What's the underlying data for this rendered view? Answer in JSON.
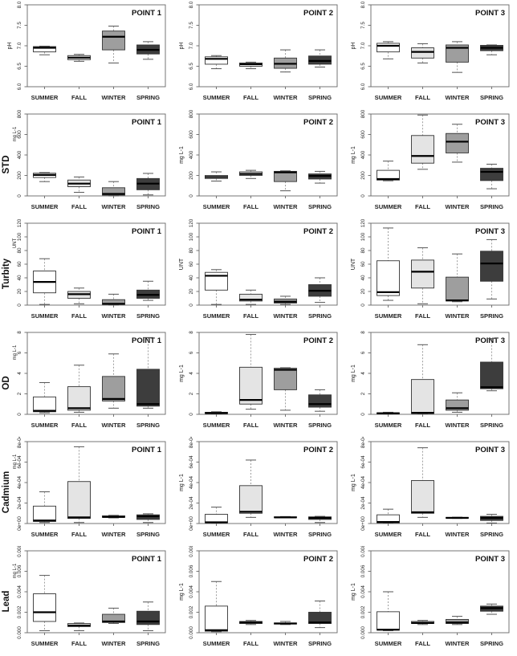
{
  "figure": {
    "background": "#ffffff",
    "seasons": [
      "SUMMER",
      "FALL",
      "WINTER",
      "SPRING"
    ],
    "season_colors": [
      "#ffffff",
      "#e4e4e4",
      "#9e9e9e",
      "#3d3d3d"
    ],
    "box_stroke": "#333333",
    "median_color": "#000000",
    "whisker_color": "#888888",
    "frame_color": "#666666",
    "text_color": "#222222"
  },
  "chart_data": [
    {
      "type": "boxplot",
      "parameter": "pH",
      "big_label": null,
      "unit": "pH",
      "ylim": [
        6.0,
        8.0
      ],
      "ytick_values": [
        6.0,
        6.5,
        7.0,
        7.5,
        8.0
      ],
      "ytick_labels": [
        "6.0",
        "6.5",
        "7.0",
        "7.5",
        "8.0"
      ],
      "categories": [
        "SUMMER",
        "FALL",
        "WINTER",
        "SPRING"
      ],
      "panels": [
        {
          "title": "POINT 1",
          "boxes": [
            [
              6.78,
              6.85,
              6.95,
              6.98,
              6.99
            ],
            [
              6.62,
              6.66,
              6.71,
              6.76,
              6.79
            ],
            [
              6.58,
              6.9,
              7.22,
              7.36,
              7.48
            ],
            [
              6.67,
              6.8,
              6.9,
              7.02,
              7.1
            ]
          ]
        },
        {
          "title": "POINT 2",
          "boxes": [
            [
              6.44,
              6.55,
              6.68,
              6.73,
              6.76
            ],
            [
              6.44,
              6.5,
              6.55,
              6.58,
              6.6
            ],
            [
              6.36,
              6.45,
              6.56,
              6.7,
              6.9
            ],
            [
              6.48,
              6.55,
              6.63,
              6.75,
              6.9
            ]
          ]
        },
        {
          "title": "POINT 3",
          "boxes": [
            [
              6.68,
              6.85,
              7.0,
              7.06,
              7.1
            ],
            [
              6.58,
              6.7,
              6.85,
              6.95,
              7.05
            ],
            [
              6.35,
              6.6,
              6.95,
              7.02,
              7.1
            ],
            [
              6.78,
              6.88,
              6.95,
              7.01,
              7.02
            ]
          ]
        }
      ]
    },
    {
      "type": "boxplot",
      "parameter": "STD",
      "big_label": "STD",
      "unit": "mg L-1",
      "ylim": [
        0,
        800
      ],
      "ytick_values": [
        0,
        200,
        400,
        600,
        800
      ],
      "ytick_labels": [
        "0",
        "200",
        "400",
        "600",
        "800"
      ],
      "categories": [
        "SUMMER",
        "FALL",
        "WINTER",
        "SPRING"
      ],
      "panels": [
        {
          "title": "POINT 1",
          "boxes": [
            [
              140,
              180,
              205,
              222,
              228
            ],
            [
              35,
              90,
              120,
              155,
              185
            ],
            [
              0,
              8,
              20,
              80,
              140
            ],
            [
              10,
              60,
              120,
              170,
              220
            ]
          ]
        },
        {
          "title": "POINT 2",
          "boxes": [
            [
              145,
              170,
              185,
              200,
              235
            ],
            [
              170,
              200,
              215,
              235,
              250
            ],
            [
              50,
              140,
              230,
              240,
              245
            ],
            [
              125,
              165,
              195,
              215,
              240
            ]
          ]
        },
        {
          "title": "POINT 3",
          "boxes": [
            [
              148,
              155,
              165,
              250,
              340
            ],
            [
              260,
              320,
              390,
              590,
              790
            ],
            [
              330,
              420,
              530,
              610,
              700
            ],
            [
              70,
              150,
              235,
              270,
              310
            ]
          ]
        }
      ]
    },
    {
      "type": "boxplot",
      "parameter": "Turbity",
      "big_label": "Turbity",
      "unit": "UNT",
      "ylim": [
        0,
        120
      ],
      "ytick_values": [
        0,
        20,
        40,
        60,
        80,
        100,
        120
      ],
      "ytick_labels": [
        "0",
        "20",
        "40",
        "60",
        "80",
        "100",
        "120"
      ],
      "categories": [
        "SUMMER",
        "FALL",
        "WINTER",
        "SPRING"
      ],
      "panels": [
        {
          "title": "POINT 1",
          "boxes": [
            [
              1,
              18,
              34,
              50,
              68
            ],
            [
              2,
              10,
              16,
              20,
              25
            ],
            [
              0,
              1,
              2,
              8,
              16
            ],
            [
              7,
              10,
              15,
              22,
              35
            ]
          ]
        },
        {
          "title": "POINT 2",
          "boxes": [
            [
              1,
              22,
              43,
              48,
              52
            ],
            [
              1,
              6,
              8,
              16,
              22
            ],
            [
              1,
              3,
              5,
              9,
              13
            ],
            [
              4,
              13,
              21,
              30,
              40
            ]
          ]
        },
        {
          "title": "POINT 3",
          "boxes": [
            [
              7,
              14,
              19,
              65,
              113
            ],
            [
              2,
              25,
              49,
              66,
              84
            ],
            [
              5,
              6,
              7,
              41,
              75
            ],
            [
              9,
              35,
              61,
              79,
              96
            ]
          ]
        }
      ]
    },
    {
      "type": "boxplot",
      "parameter": "OD",
      "big_label": "OD",
      "unit": "mg L-1",
      "ylim": [
        0,
        8
      ],
      "ytick_values": [
        0,
        2,
        4,
        6,
        8
      ],
      "ytick_labels": [
        "0",
        "2",
        "4",
        "6",
        "8"
      ],
      "categories": [
        "SUMMER",
        "FALL",
        "WINTER",
        "SPRING"
      ],
      "panels": [
        {
          "title": "POINT 1",
          "boxes": [
            [
              0.15,
              0.25,
              0.35,
              1.7,
              3.1
            ],
            [
              0.2,
              0.4,
              0.6,
              2.7,
              4.8
            ],
            [
              0.6,
              1.3,
              1.5,
              3.7,
              5.9
            ],
            [
              0.6,
              0.8,
              1.0,
              4.4,
              7.5
            ]
          ]
        },
        {
          "title": "POINT 2",
          "boxes": [
            [
              0.05,
              0.08,
              0.12,
              0.2,
              0.25
            ],
            [
              0.5,
              1.0,
              1.4,
              4.6,
              7.8
            ],
            [
              0.4,
              2.4,
              4.35,
              4.5,
              4.55
            ],
            [
              0.3,
              0.7,
              1.0,
              1.9,
              2.4
            ]
          ]
        },
        {
          "title": "POINT 3",
          "boxes": [
            [
              0.03,
              0.06,
              0.1,
              0.15,
              0.2
            ],
            [
              0.05,
              0.08,
              0.15,
              3.4,
              6.8
            ],
            [
              0.2,
              0.4,
              0.6,
              1.4,
              2.1
            ],
            [
              2.3,
              2.5,
              2.65,
              5.1,
              7.4
            ]
          ]
        }
      ]
    },
    {
      "type": "boxplot",
      "parameter": "Cadmium",
      "big_label": "Cadmium",
      "unit": "mg L-1",
      "ylim": [
        0,
        0.0008
      ],
      "ytick_values": [
        0,
        0.0002,
        0.0004,
        0.0006,
        0.0008
      ],
      "ytick_labels": [
        "0e+00",
        "2e-04",
        "4e-04",
        "6e-04",
        "8e-04"
      ],
      "categories": [
        "SUMMER",
        "FALL",
        "WINTER",
        "SPRING"
      ],
      "panels": [
        {
          "title": "POINT 1",
          "boxes": [
            [
              1e-05,
              2e-05,
              3e-05,
              0.00017,
              0.00031
            ],
            [
              1e-05,
              5e-05,
              6e-05,
              0.00041,
              0.00075
            ],
            [
              5.5e-05,
              6e-05,
              6.5e-05,
              7.5e-05,
              8e-05
            ],
            [
              1e-05,
              4e-05,
              7e-05,
              8.5e-05,
              9.5e-05
            ]
          ]
        },
        {
          "title": "POINT 2",
          "boxes": [
            [
              5e-06,
              8e-06,
              1.2e-05,
              9e-05,
              0.00016
            ],
            [
              6e-05,
              0.0001,
              0.000115,
              0.00037,
              0.00062
            ],
            [
              5.5e-05,
              5.8e-05,
              6e-05,
              6.5e-05,
              6.8e-05
            ],
            [
              1e-05,
              4e-05,
              5.5e-05,
              6.5e-05,
              7e-05
            ]
          ]
        },
        {
          "title": "POINT 3",
          "boxes": [
            [
              5e-06,
              8e-06,
              1.5e-05,
              8.5e-05,
              0.00014
            ],
            [
              6e-05,
              0.0001,
              0.00011,
              0.00042,
              0.00074
            ],
            [
              5e-05,
              5.2e-05,
              5.5e-05,
              6e-05,
              6.2e-05
            ],
            [
              5e-06,
              3e-05,
              5.5e-05,
              7e-05,
              9e-05
            ]
          ]
        }
      ]
    },
    {
      "type": "boxplot",
      "parameter": "Lead",
      "big_label": "Lead",
      "unit": "mg L-1",
      "ylim": [
        0,
        0.008
      ],
      "ytick_values": [
        0,
        0.002,
        0.004,
        0.006,
        0.008
      ],
      "ytick_labels": [
        "0.000",
        "0.002",
        "0.004",
        "0.006",
        "0.008"
      ],
      "categories": [
        "SUMMER",
        "FALL",
        "WINTER",
        "SPRING"
      ],
      "panels": [
        {
          "title": "POINT 1",
          "boxes": [
            [
              0.0002,
              0.0011,
              0.002,
              0.0038,
              0.0056
            ],
            [
              0.0002,
              0.0006,
              0.0007,
              0.0009,
              0.00095
            ],
            [
              0.0009,
              0.001,
              0.0011,
              0.0018,
              0.0024
            ],
            [
              0.0002,
              0.0008,
              0.0011,
              0.0021,
              0.003
            ]
          ]
        },
        {
          "title": "POINT 2",
          "boxes": [
            [
              0.0001,
              0.00015,
              0.00025,
              0.0026,
              0.005
            ],
            [
              0.0008,
              0.0009,
              0.001,
              0.0011,
              0.0012
            ],
            [
              0.0008,
              0.00085,
              0.0009,
              0.00095,
              0.0011
            ],
            [
              0.0005,
              0.0009,
              0.001,
              0.002,
              0.0031
            ]
          ]
        },
        {
          "title": "POINT 3",
          "boxes": [
            [
              0.0002,
              0.00025,
              0.0003,
              0.00205,
              0.004
            ],
            [
              0.0008,
              0.0009,
              0.00095,
              0.0011,
              0.0012
            ],
            [
              0.0008,
              0.0009,
              0.001,
              0.0013,
              0.0016
            ],
            [
              0.0018,
              0.0021,
              0.0024,
              0.0026,
              0.0028
            ]
          ]
        }
      ]
    }
  ]
}
